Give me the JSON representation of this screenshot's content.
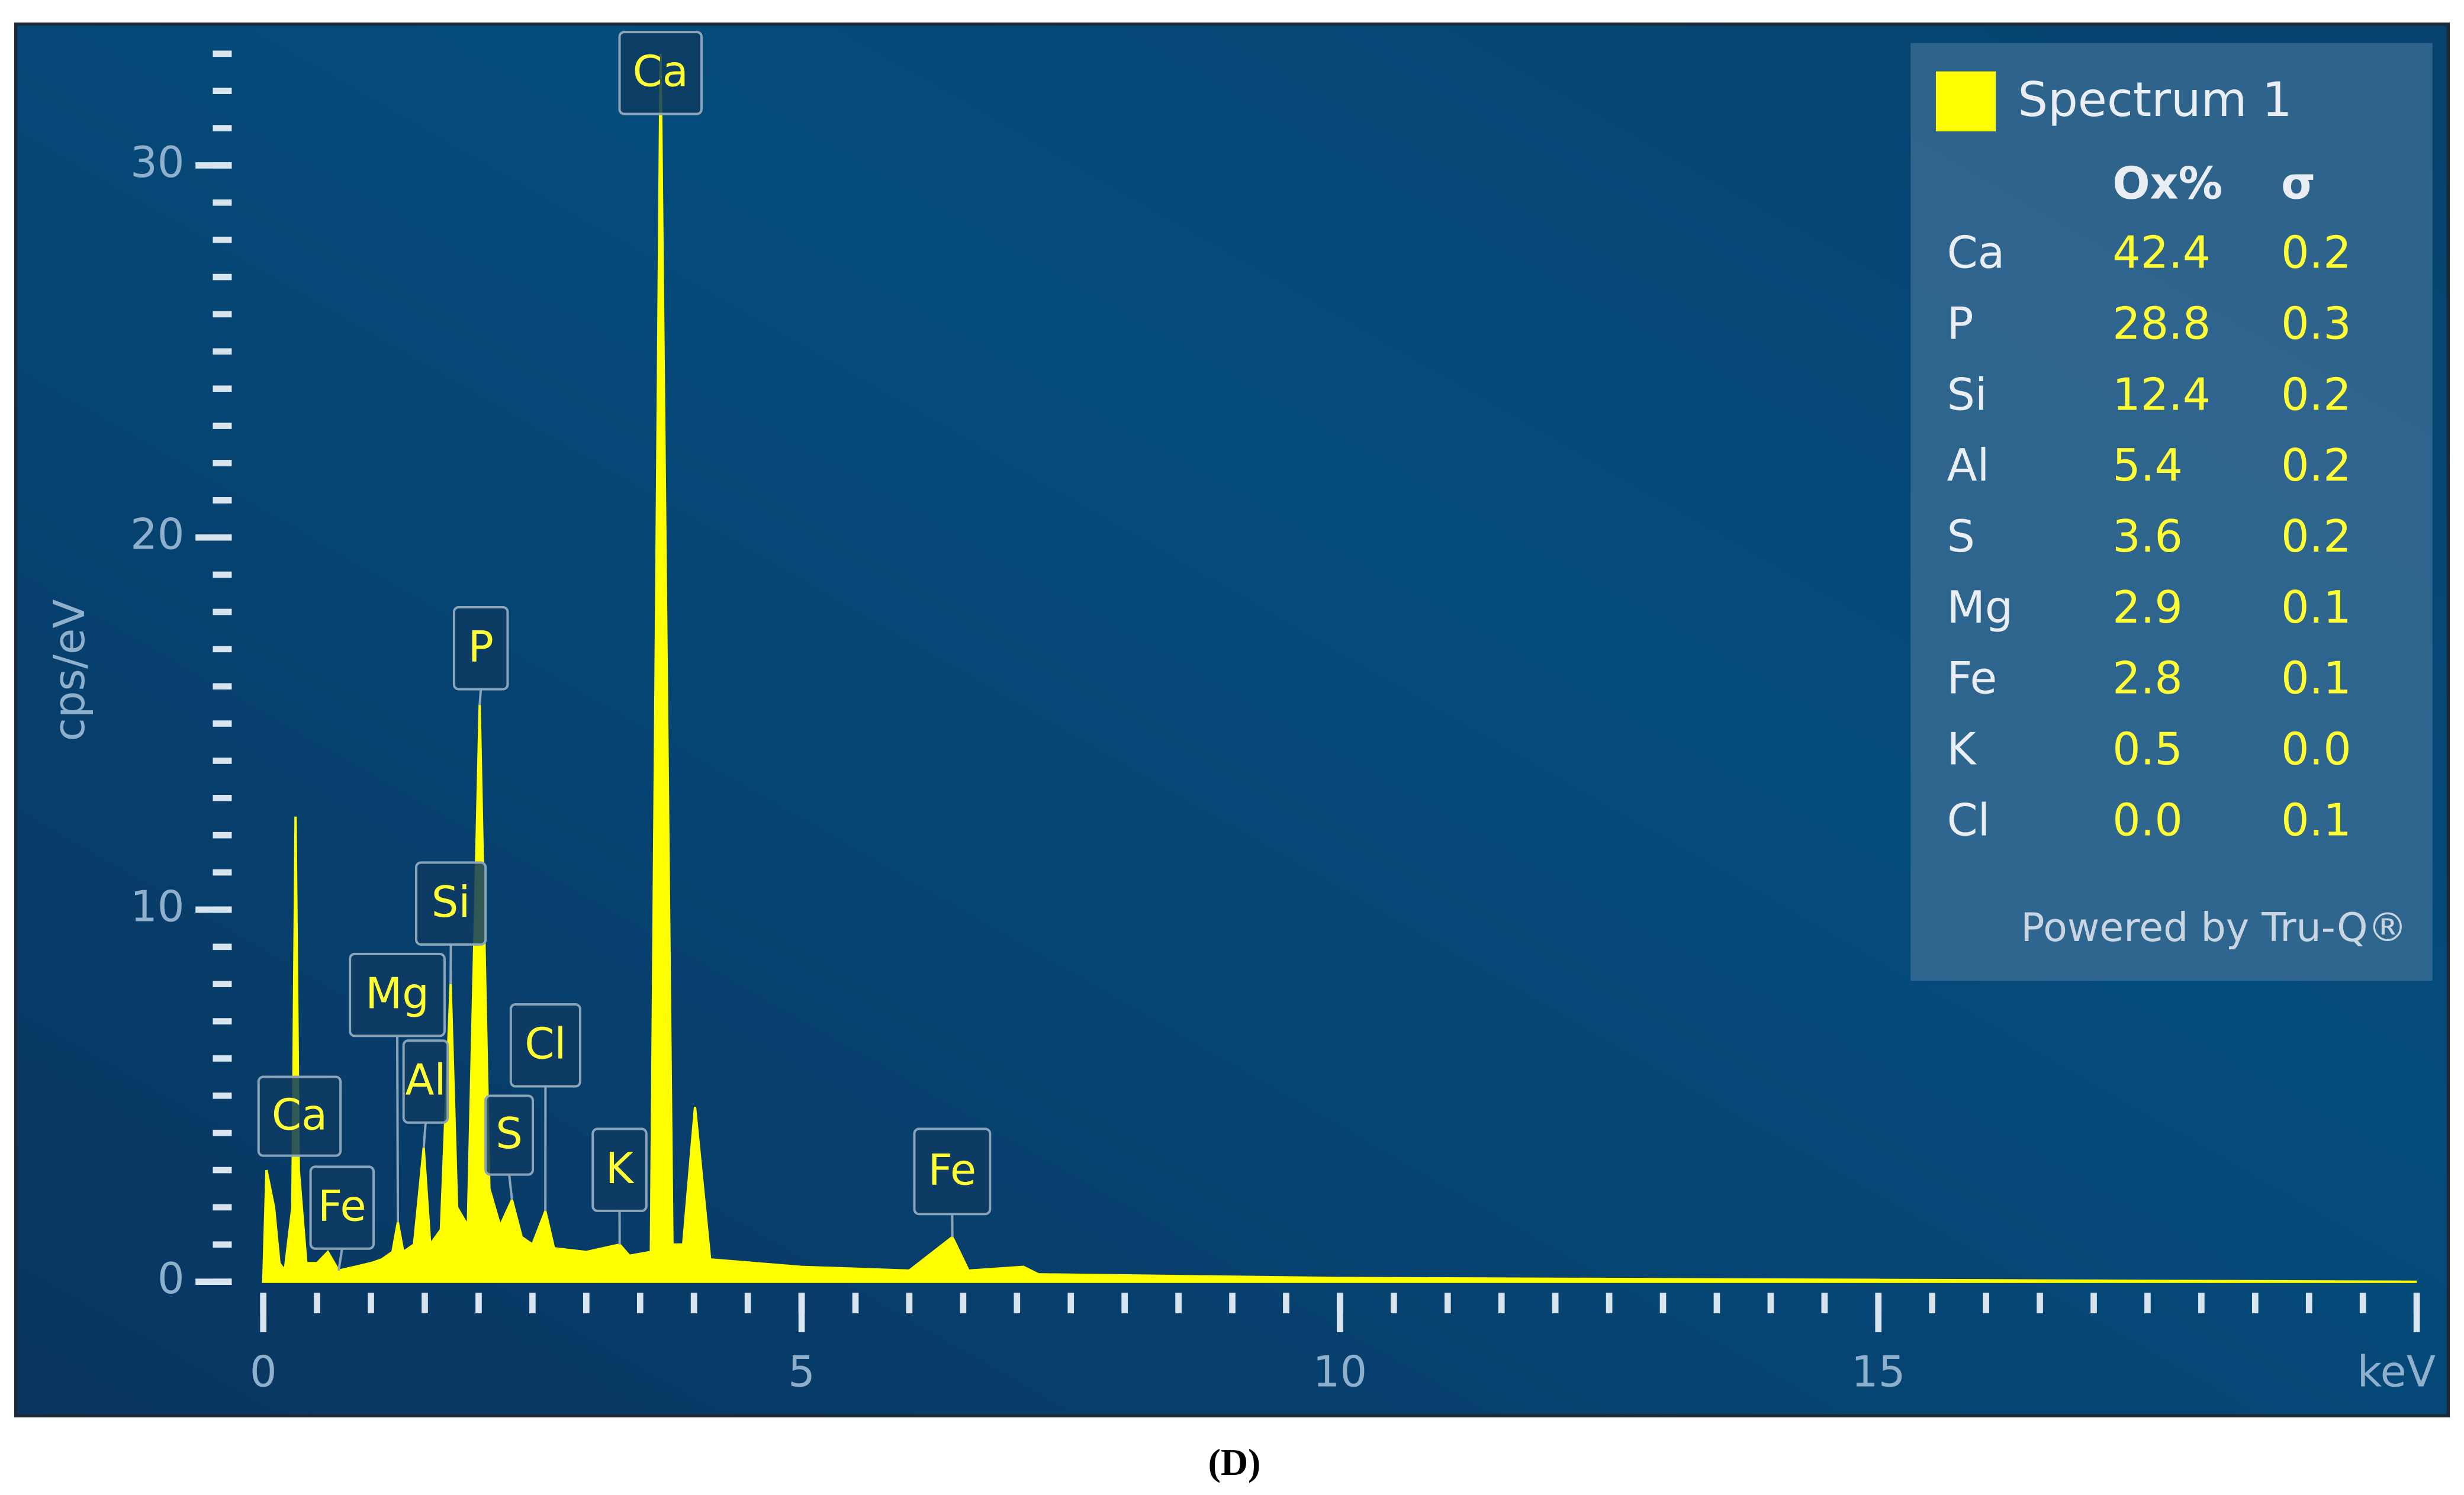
{
  "chart_data": {
    "type": "area",
    "xlabel": "keV",
    "ylabel": "cps/eV",
    "x": [
      0,
      0.03,
      0.1,
      0.15,
      0.2,
      0.27,
      0.3,
      0.33,
      0.4,
      0.5,
      0.6,
      0.7,
      0.85,
      1.0,
      1.1,
      1.2,
      1.25,
      1.3,
      1.4,
      1.49,
      1.55,
      1.65,
      1.74,
      1.8,
      1.9,
      2.01,
      2.1,
      2.2,
      2.31,
      2.4,
      2.5,
      2.62,
      2.7,
      3.0,
      3.31,
      3.4,
      3.6,
      3.69,
      3.8,
      3.9,
      4.01,
      4.15,
      5,
      6,
      6.4,
      6.55,
      7.06,
      7.2,
      10,
      15,
      20
    ],
    "series": [
      {
        "name": "Spectrum 1",
        "color": "#ffff00",
        "values": [
          0,
          3.0,
          2.0,
          0.5,
          0.3,
          2.0,
          12.5,
          3.0,
          0.5,
          0.5,
          0.8,
          0.3,
          0.4,
          0.5,
          0.6,
          0.8,
          1.6,
          0.8,
          1.0,
          3.6,
          1.0,
          1.4,
          8.0,
          2.0,
          1.5,
          15.5,
          2.5,
          1.5,
          2.2,
          1.2,
          1.0,
          1.9,
          0.9,
          0.8,
          1.0,
          0.7,
          0.8,
          33.0,
          1.0,
          1.0,
          4.7,
          0.6,
          0.4,
          0.3,
          1.2,
          0.3,
          0.4,
          0.2,
          0.1,
          0.05,
          0
        ]
      }
    ],
    "xlim": [
      0,
      20
    ],
    "xticks": [
      0,
      5,
      10,
      15
    ],
    "xminor": 0.5,
    "ylim": [
      0,
      33.5
    ],
    "yticks": [
      0,
      10,
      20,
      30
    ],
    "yminor": 1,
    "peak_labels": [
      {
        "label": "Ca",
        "x": 0.3
      },
      {
        "label": "Fe",
        "x": 0.7
      },
      {
        "label": "Mg",
        "x": 1.25
      },
      {
        "label": "Al",
        "x": 1.49
      },
      {
        "label": "Si",
        "x": 1.74
      },
      {
        "label": "P",
        "x": 2.01
      },
      {
        "label": "S",
        "x": 2.31
      },
      {
        "label": "Cl",
        "x": 2.62
      },
      {
        "label": "K",
        "x": 3.31
      },
      {
        "label": "Ca",
        "x": 3.69
      },
      {
        "label": "Fe",
        "x": 6.4
      }
    ]
  },
  "results_panel": {
    "headers": [
      "Ox%",
      "σ"
    ],
    "rows": [
      [
        "Ca",
        "42.4",
        "0.2"
      ],
      [
        "P",
        "28.8",
        "0.3"
      ],
      [
        "Si",
        "12.4",
        "0.2"
      ],
      [
        "Al",
        "5.4",
        "0.2"
      ],
      [
        "S",
        "3.6",
        "0.2"
      ],
      [
        "Mg",
        "2.9",
        "0.1"
      ],
      [
        "Fe",
        "2.8",
        "0.1"
      ],
      [
        "K",
        "0.5",
        "0.0"
      ],
      [
        "Cl",
        "0.0",
        "0.1"
      ]
    ],
    "footer": "Powered by Tru-Q®"
  },
  "caption": "(D)"
}
